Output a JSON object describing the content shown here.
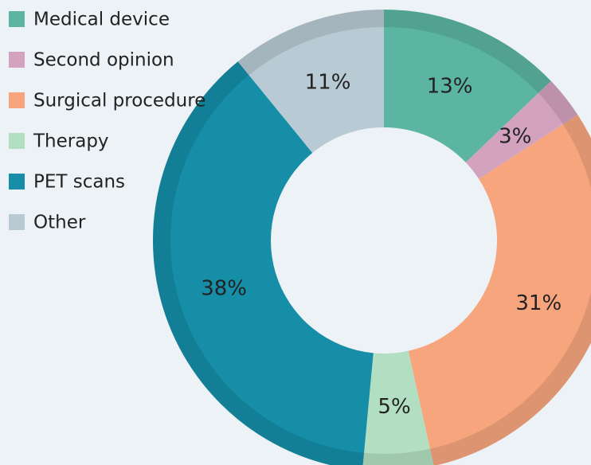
{
  "chart_data": {
    "type": "donut",
    "categories": [
      "Medical device",
      "Second opinion",
      "Surgical procedure",
      "Therapy",
      "PET scans",
      "Other"
    ],
    "values": [
      13,
      3,
      31,
      5,
      38,
      11
    ],
    "value_labels": [
      "13%",
      "3%",
      "31%",
      "5%",
      "38%",
      "11%"
    ],
    "colors": [
      "#5bb5a2",
      "#d3a2bf",
      "#f7a57d",
      "#b2dfc1",
      "#168ea8",
      "#b8cad3"
    ],
    "legend": "top-left"
  }
}
